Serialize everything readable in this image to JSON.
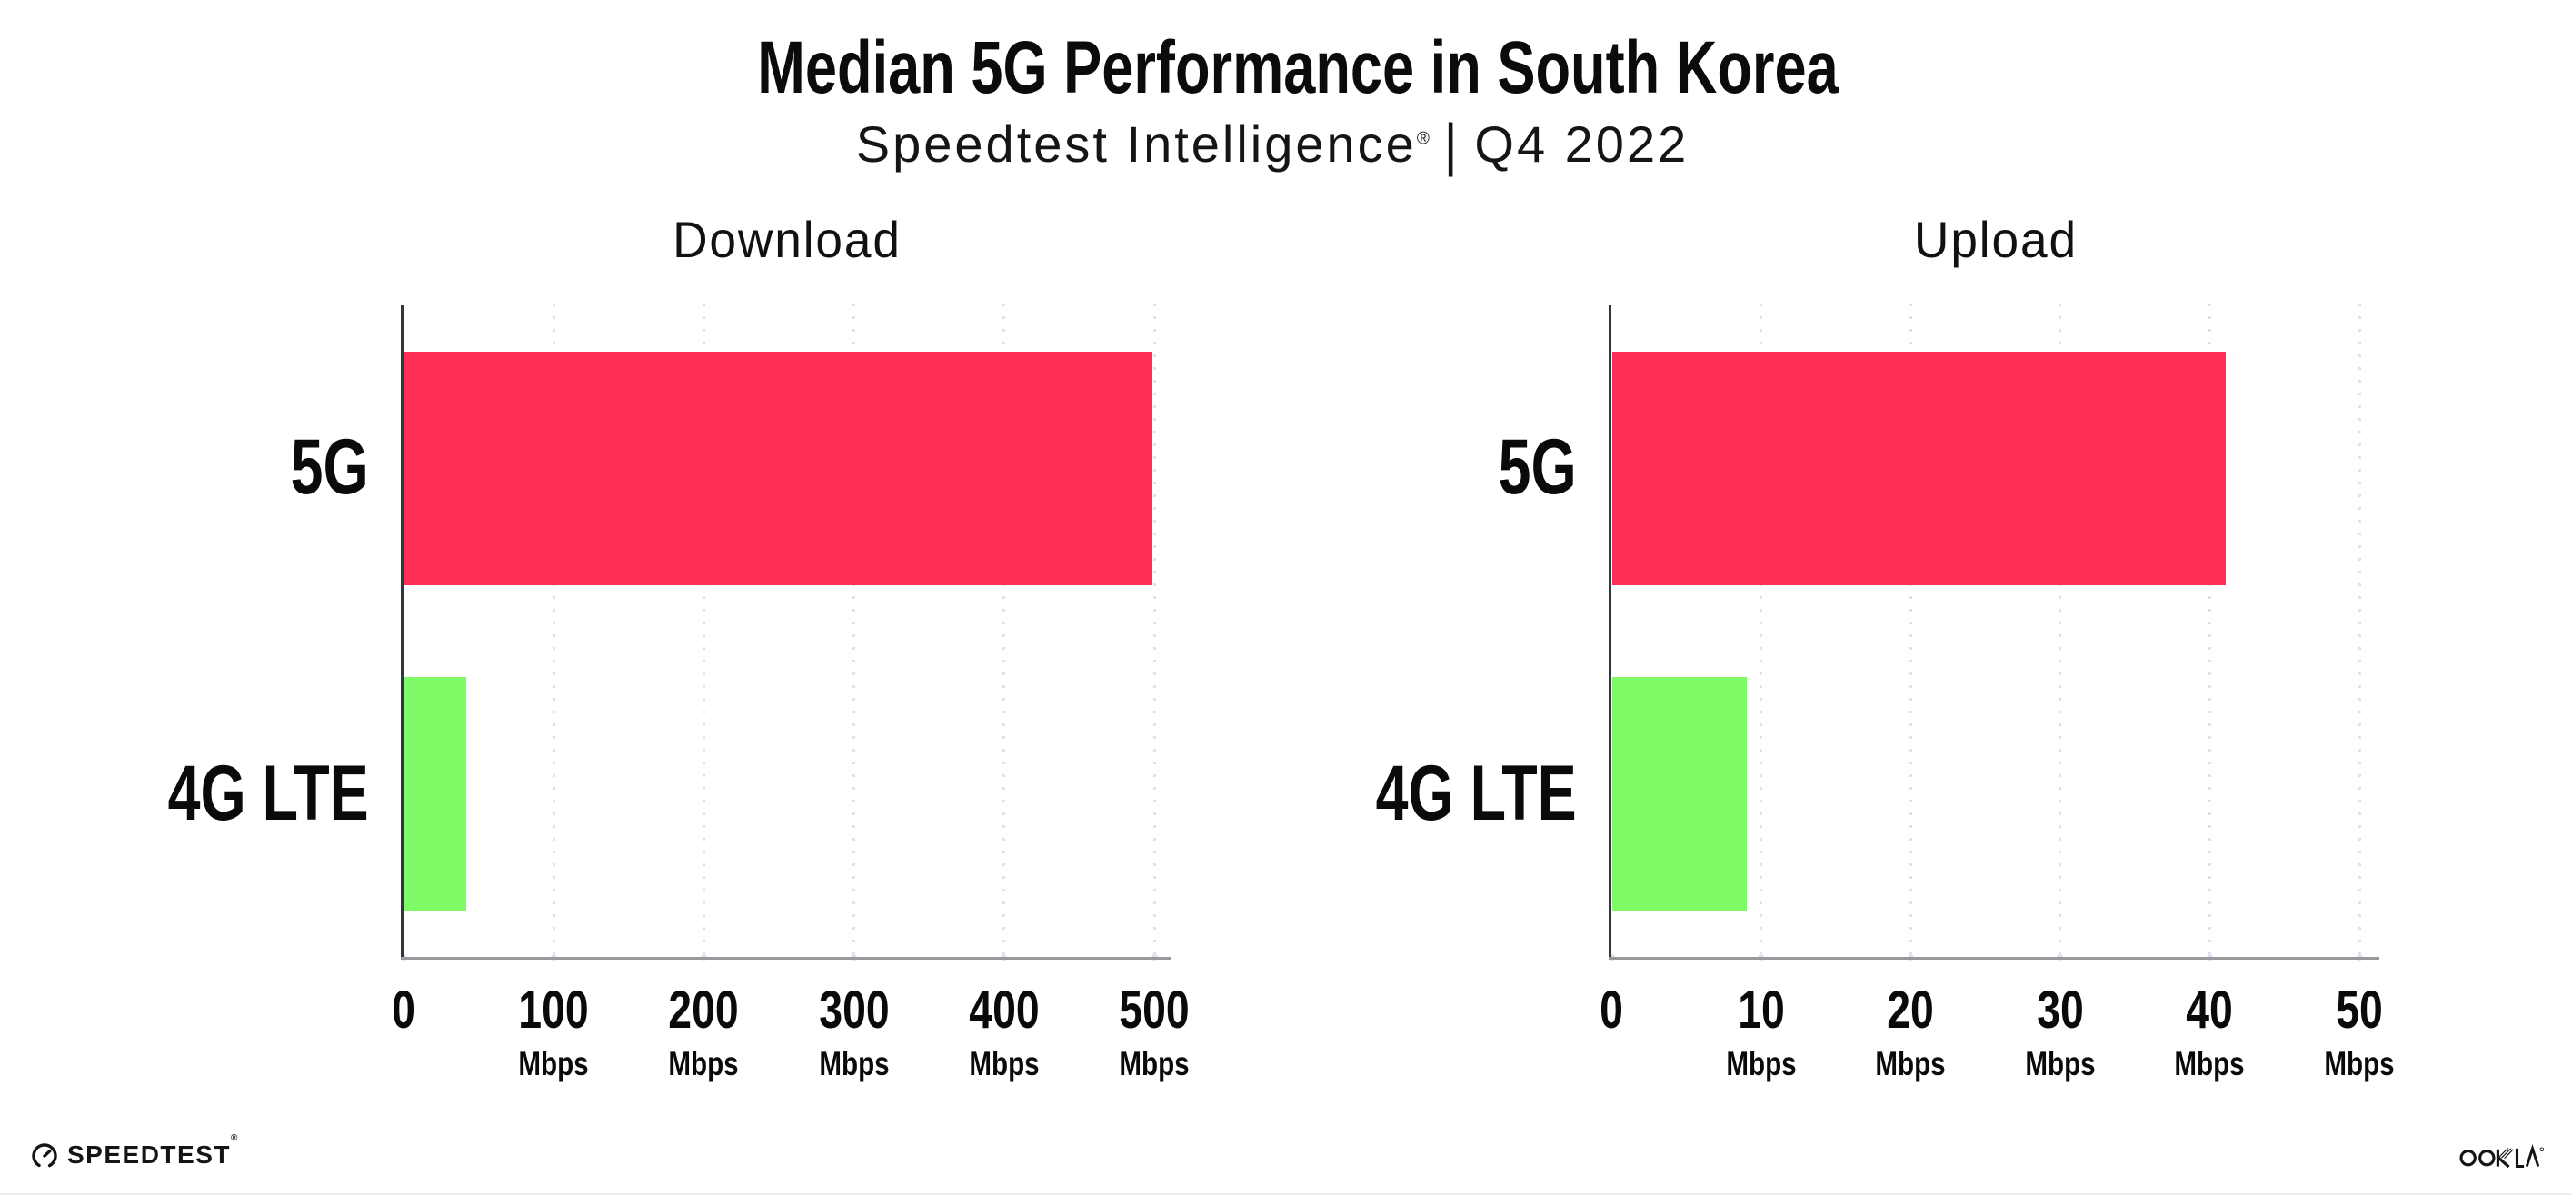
{
  "header": {
    "title": "Median 5G Performance in South Korea",
    "subtitle_product": "Speedtest Intelligence",
    "subtitle_reg": "®",
    "subtitle_separator": "|",
    "subtitle_period": "Q4 2022"
  },
  "colors": {
    "bar_5g": "#FF2E56",
    "bar_4g_lte": "#7FFB67",
    "y_axis": "#2E383E",
    "x_axis": "#97999D",
    "gridline_dots": "#DFE1EC",
    "text": "#0A0A0A"
  },
  "chart_data": [
    {
      "type": "bar",
      "orientation": "horizontal",
      "title": "Download",
      "categories": [
        "5G",
        "4G LTE"
      ],
      "values": [
        498,
        41
      ],
      "unit": "Mbps",
      "xlim": [
        0,
        500
      ],
      "ticks": [
        0,
        100,
        200,
        300,
        400,
        500
      ],
      "tick_unit_label": "Mbps",
      "grid": "dotted-vertical",
      "legend": "none",
      "bar_colors": [
        "#FF2E56",
        "#7FFB67"
      ]
    },
    {
      "type": "bar",
      "orientation": "horizontal",
      "title": "Upload",
      "categories": [
        "5G",
        "4G LTE"
      ],
      "values": [
        41,
        9
      ],
      "unit": "Mbps",
      "xlim": [
        0,
        50
      ],
      "ticks": [
        0,
        10,
        20,
        30,
        40,
        50
      ],
      "tick_unit_label": "Mbps",
      "grid": "dotted-vertical",
      "legend": "none",
      "bar_colors": [
        "#FF2E56",
        "#7FFB67"
      ]
    }
  ],
  "footer": {
    "speedtest_label": "SPEEDTEST",
    "speedtest_reg": "®",
    "ookla_label": "OOKLA",
    "ookla_reg": "®"
  }
}
